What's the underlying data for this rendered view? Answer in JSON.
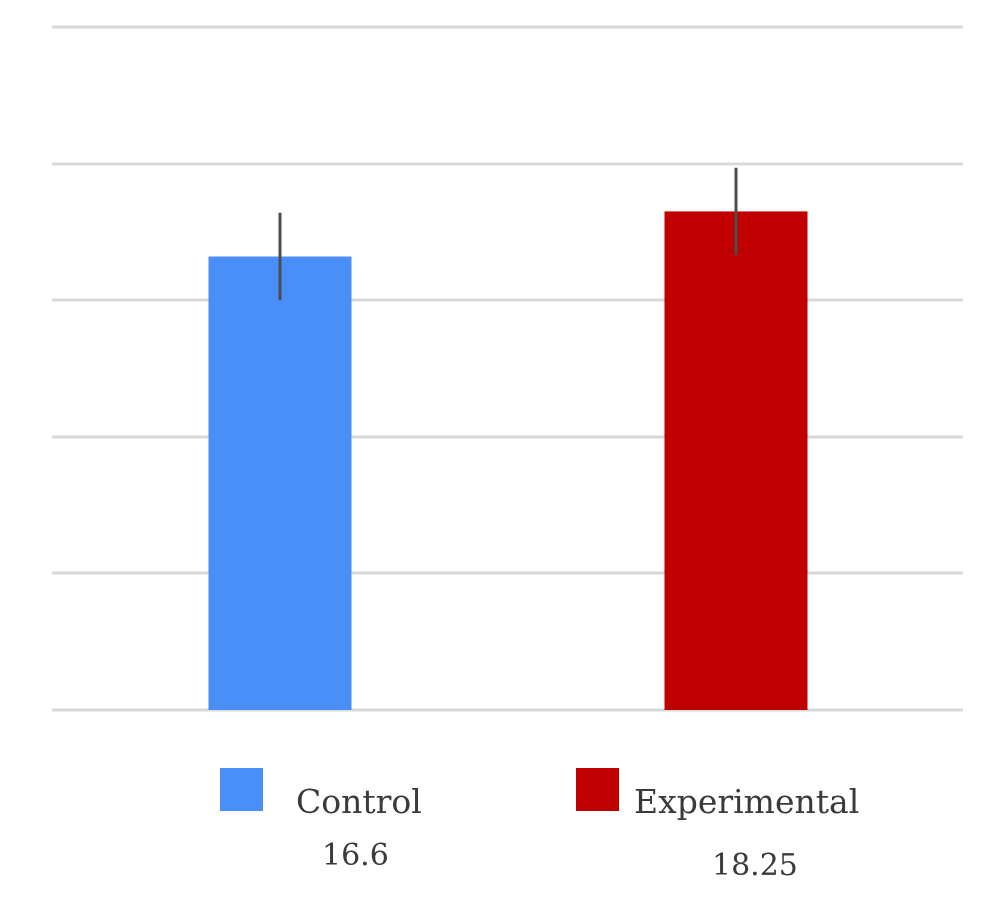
{
  "chart_data": {
    "type": "bar",
    "categories": [
      "Control",
      "Experimental"
    ],
    "series": [
      {
        "values": [
          16.6,
          18.25
        ],
        "colors": [
          "#4a8ff7",
          "#c00000"
        ],
        "error": [
          1.6,
          1.6
        ]
      }
    ],
    "value_labels": [
      "16.6",
      "18.25"
    ],
    "ylim": [
      0,
      25
    ],
    "grid": true,
    "legend_placement": "bottom",
    "title": "",
    "xlabel": "",
    "ylabel": ""
  },
  "legend": [
    {
      "label": "Control",
      "color": "#4a8ff7"
    },
    {
      "label": "Experimental",
      "color": "#c00000"
    }
  ],
  "colors": {
    "gridline": "#d9d9d9",
    "errorbar": "#4d4d4d"
  }
}
